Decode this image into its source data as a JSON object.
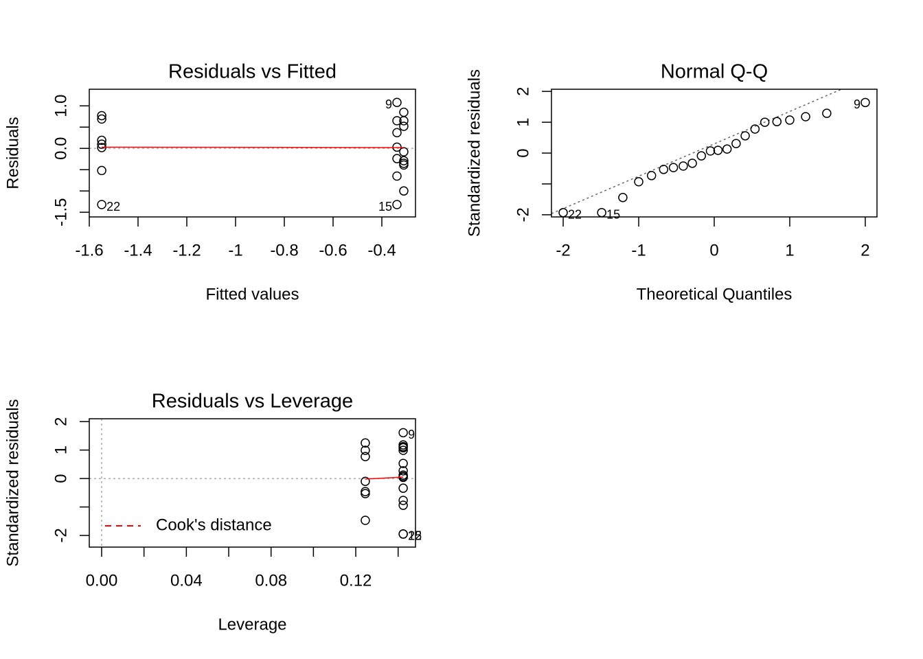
{
  "chart_data": [
    {
      "type": "scatter",
      "title": "Residuals vs Fitted",
      "xlabel": "Fitted values",
      "ylabel": "Residuals",
      "x": [
        -1.549,
        -1.549,
        -1.549,
        -1.549,
        -1.549,
        -1.549,
        -1.549,
        -0.338,
        -0.31,
        -0.338,
        -0.31,
        -0.31,
        -0.338,
        -0.338,
        -0.31,
        -0.338,
        -0.31,
        -0.31,
        -0.31,
        -0.338,
        -0.31,
        -0.338
      ],
      "y": [
        0.77,
        0.69,
        0.19,
        0.1,
        0.02,
        -0.52,
        -1.32,
        1.08,
        0.85,
        0.65,
        0.65,
        0.52,
        0.37,
        0.03,
        -0.08,
        -0.24,
        -0.29,
        -0.35,
        -0.39,
        -0.65,
        -1.0,
        -1.32
      ],
      "point_labels": [
        {
          "label": "22",
          "point": 6
        },
        {
          "label": "9",
          "point": 7
        },
        {
          "label": "15",
          "point": 21
        }
      ],
      "xlim": [
        -1.6,
        -0.262
      ],
      "ylim": [
        -1.61,
        1.39
      ],
      "xticks": [
        -1.6,
        -1.4,
        -1.2,
        -1.0,
        -0.8,
        -0.6,
        -0.4
      ],
      "yticks": [
        {
          "value": 1,
          "label": "1.0"
        },
        {
          "value": 0,
          "label": "0.0"
        },
        -1.5
      ],
      "yminor": [
        0.5,
        -0.5,
        -1.0
      ],
      "hline": 0,
      "smooth": {
        "x": [
          -1.549,
          -0.31
        ],
        "y": [
          0.03,
          0.02
        ],
        "color": "#ff0000"
      }
    },
    {
      "type": "scatter",
      "title": "Normal Q-Q",
      "xlabel": "Theoretical Quantiles",
      "ylabel": "Standardized residuals",
      "x": [
        -2.0,
        -1.49,
        -1.21,
        -1.0,
        -0.83,
        -0.67,
        -0.54,
        -0.41,
        -0.29,
        -0.17,
        -0.05,
        0.05,
        0.17,
        0.29,
        0.41,
        0.54,
        0.67,
        0.83,
        1.0,
        1.21,
        1.49,
        2.0
      ],
      "y": [
        -1.93,
        -1.93,
        -1.44,
        -0.93,
        -0.73,
        -0.53,
        -0.47,
        -0.42,
        -0.33,
        -0.09,
        0.07,
        0.09,
        0.13,
        0.31,
        0.56,
        0.78,
        1.0,
        1.02,
        1.07,
        1.18,
        1.29,
        1.64
      ],
      "point_labels": [
        {
          "label": "22",
          "point": 0
        },
        {
          "label": "15",
          "point": 1
        },
        {
          "label": "9",
          "point": 21
        }
      ],
      "xlim": [
        -2.155,
        2.155
      ],
      "ylim": [
        -2.07,
        2.07
      ],
      "xticks": [
        -2,
        -1,
        0,
        1,
        2
      ],
      "yticks": [
        2,
        1,
        0,
        -2
      ],
      "yminor": [
        -1
      ],
      "qqline": {
        "intercept": 0.3,
        "slope": 1.05
      }
    },
    {
      "type": "scatter",
      "title": "Residuals vs Leverage",
      "xlabel": "Leverage",
      "ylabel": "Standardized residuals",
      "x": [
        0.1245,
        0.1245,
        0.1245,
        0.1245,
        0.1245,
        0.1245,
        0.1245,
        0.1424,
        0.1424,
        0.1424,
        0.1424,
        0.1424,
        0.1424,
        0.1424,
        0.1424,
        0.1424,
        0.1424,
        0.1424,
        0.1424,
        0.1424,
        0.1424,
        0.1424
      ],
      "y": [
        1.25,
        0.99,
        0.77,
        -0.1,
        -0.46,
        -0.53,
        -1.47,
        1.61,
        1.18,
        1.08,
        0.99,
        0.53,
        0.27,
        0.07,
        -0.34,
        -0.77,
        -0.94,
        -1.95,
        -1.95,
        0.12,
        0.04,
        1.12
      ],
      "point_labels": [
        {
          "label": "9",
          "point": 7
        },
        {
          "label": "15",
          "point": 17
        },
        {
          "label": "22",
          "point": 18
        }
      ],
      "xlim": [
        -0.00584,
        0.1482
      ],
      "ylim": [
        -2.41,
        2.1
      ],
      "xticks": [
        {
          "value": 0,
          "label": "0.00"
        },
        {
          "value": 0.04,
          "label": "0.04"
        },
        {
          "value": 0.08,
          "label": "0.08"
        },
        {
          "value": 0.12,
          "label": "0.12"
        }
      ],
      "xminor": [
        0.02,
        0.06,
        0.1,
        0.14
      ],
      "yticks": [
        2,
        1,
        0,
        -2
      ],
      "yminor": [
        -1
      ],
      "hline": 0,
      "vline": 0,
      "smooth": {
        "x": [
          0.1245,
          0.1424
        ],
        "y": [
          -0.02,
          0.05
        ],
        "color": "#ff0000"
      },
      "legend": {
        "label": "Cook's distance",
        "color": "#ff0000"
      }
    }
  ]
}
